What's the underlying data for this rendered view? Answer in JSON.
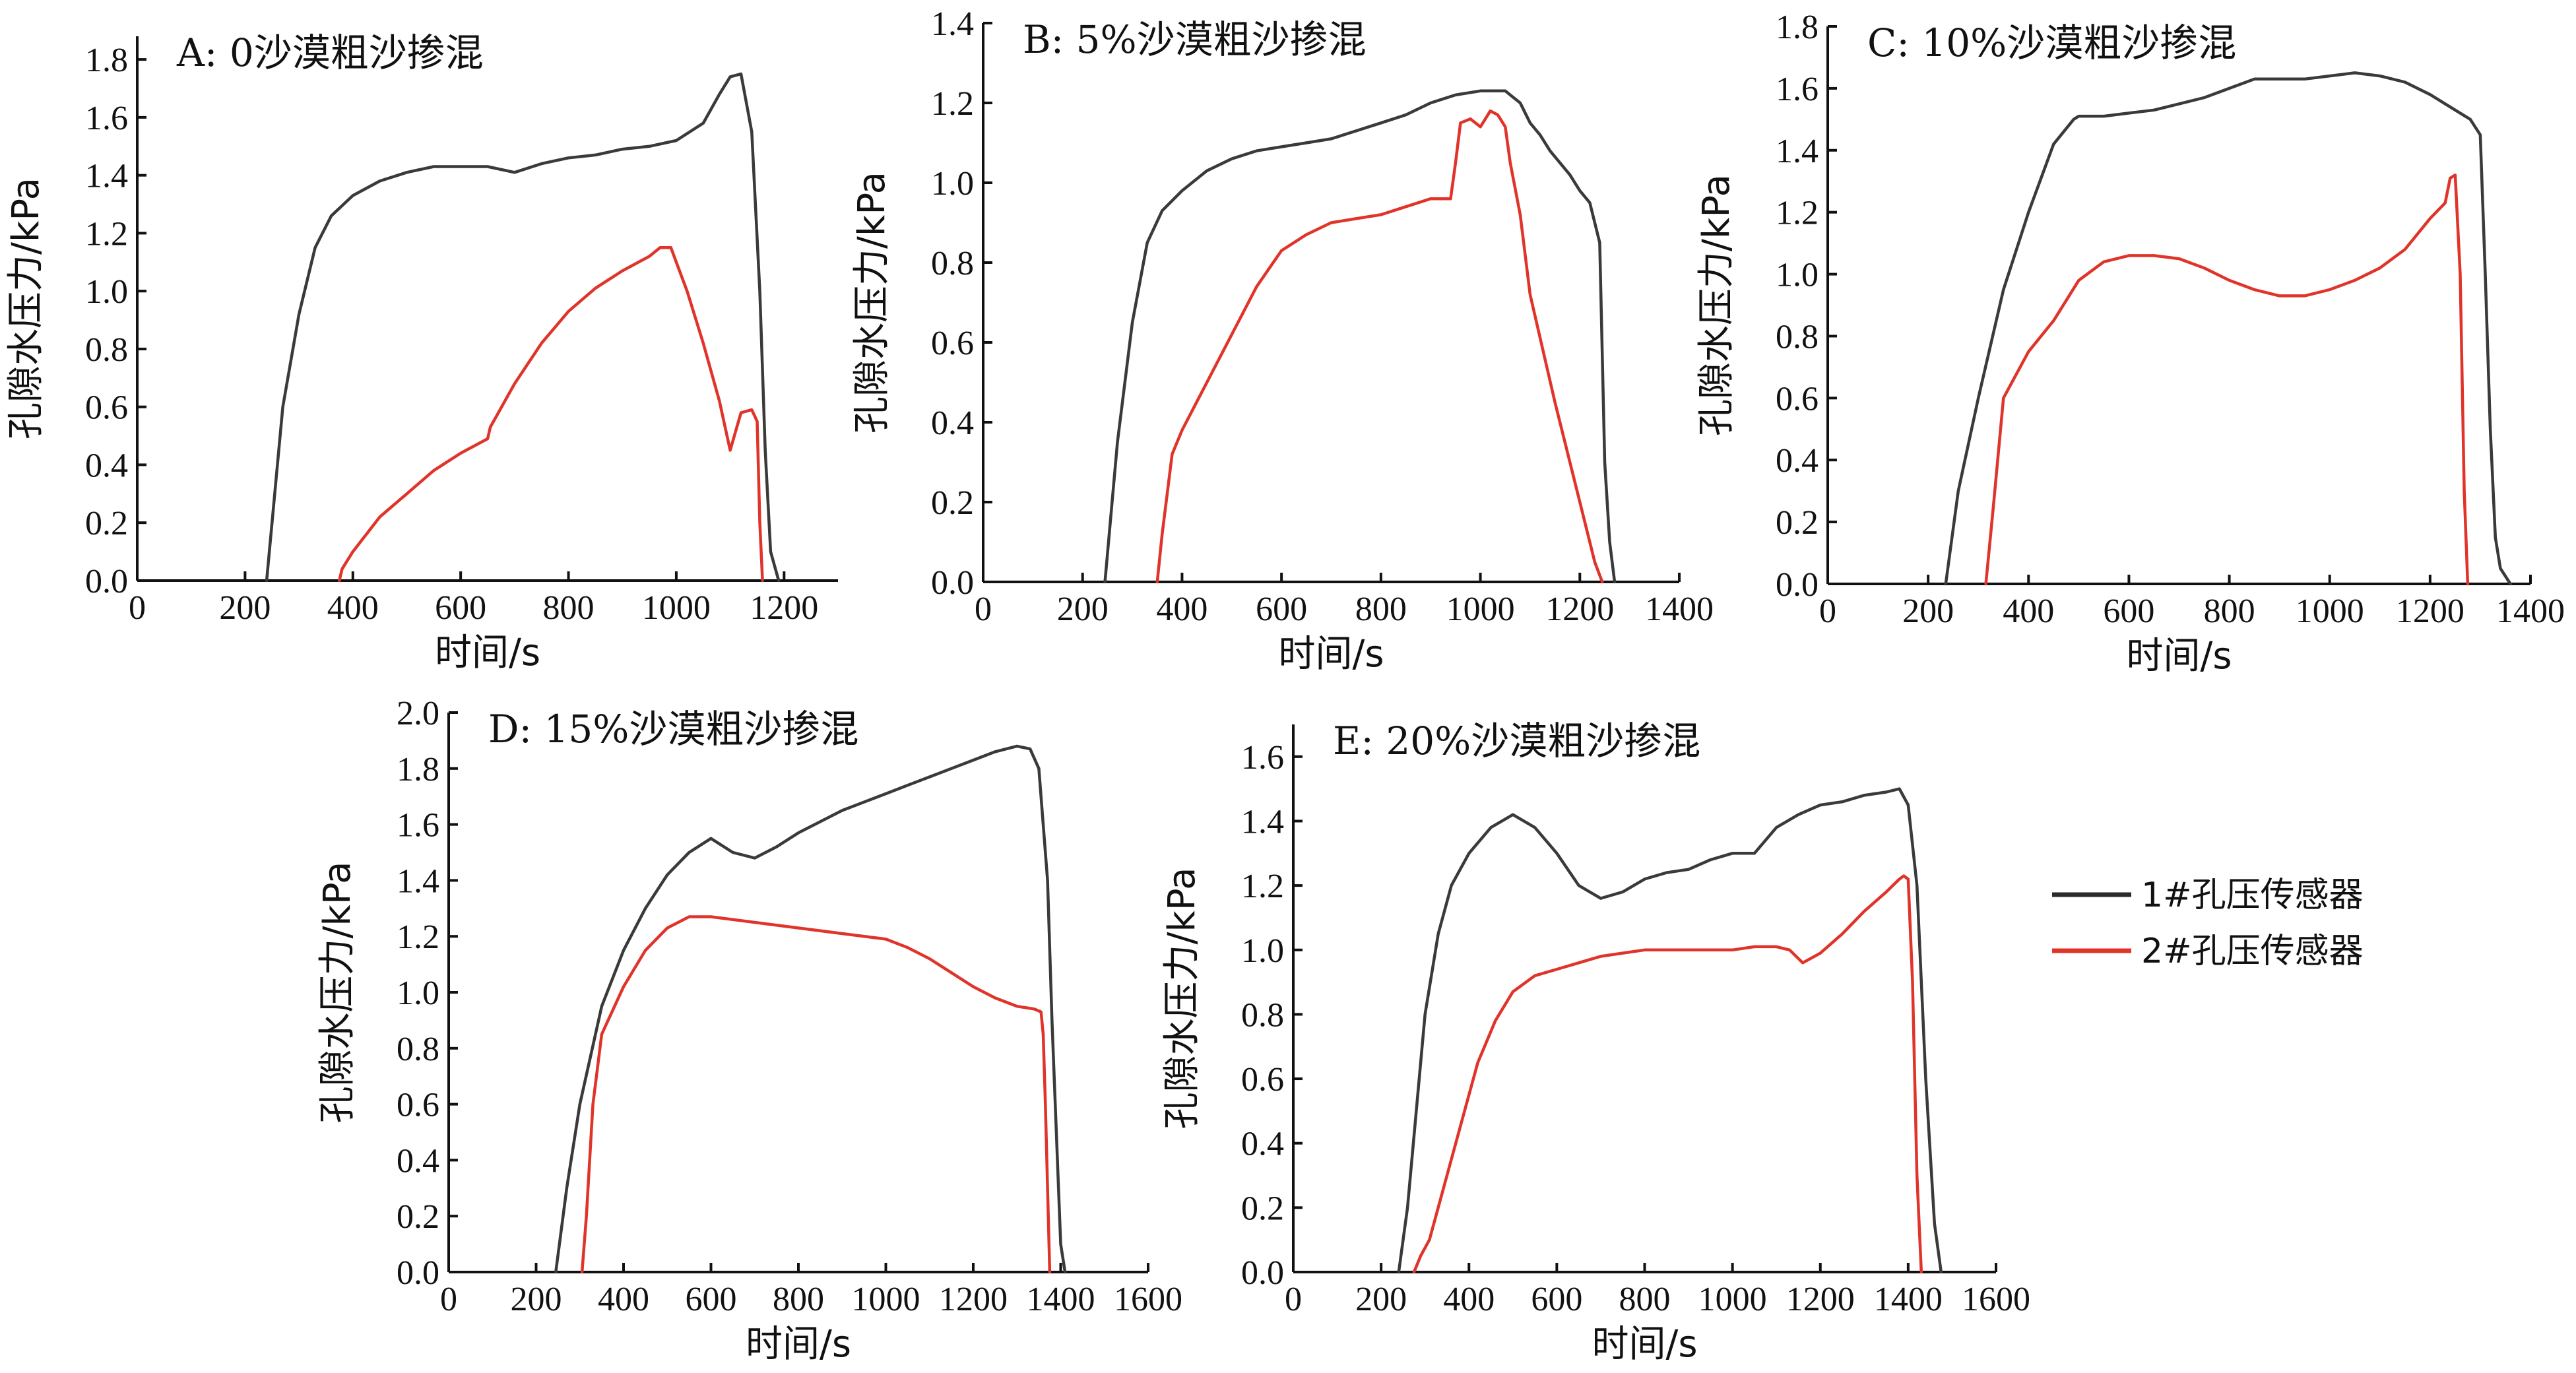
{
  "figure": {
    "legend": [
      {
        "label": "1#孔压传感器",
        "color": "#2b2b2b"
      },
      {
        "label": "2#孔压传感器",
        "color": "#e0342a"
      }
    ]
  },
  "chart_data": [
    {
      "type": "line",
      "title": "A: 0沙漠粗沙掺混",
      "xlabel": "时间/s",
      "ylabel": "孔隙水压力/kPa",
      "xlim": [
        0,
        1300
      ],
      "ylim": [
        0,
        1.88
      ],
      "xticks": [
        0,
        200,
        400,
        600,
        800,
        1000,
        1200
      ],
      "yticks": [
        0.0,
        0.2,
        0.4,
        0.6,
        0.8,
        1.0,
        1.2,
        1.4,
        1.6,
        1.8
      ],
      "series": [
        {
          "name": "1#孔压传感器",
          "color": "#3a3a3a",
          "x": [
            240,
            270,
            300,
            330,
            360,
            400,
            450,
            500,
            550,
            600,
            650,
            700,
            750,
            800,
            850,
            900,
            950,
            1000,
            1050,
            1080,
            1100,
            1120,
            1140,
            1155,
            1165,
            1175,
            1190
          ],
          "y": [
            0,
            0.6,
            0.92,
            1.15,
            1.26,
            1.33,
            1.38,
            1.41,
            1.43,
            1.43,
            1.43,
            1.41,
            1.44,
            1.46,
            1.47,
            1.49,
            1.5,
            1.52,
            1.58,
            1.68,
            1.74,
            1.75,
            1.55,
            1.0,
            0.45,
            0.1,
            0
          ]
        },
        {
          "name": "2#孔压传感器",
          "color": "#e0342a",
          "x": [
            375,
            380,
            400,
            450,
            500,
            550,
            600,
            650,
            655,
            700,
            750,
            800,
            850,
            900,
            950,
            970,
            990,
            1000,
            1020,
            1050,
            1080,
            1100,
            1120,
            1140,
            1150,
            1155,
            1160
          ],
          "y": [
            0,
            0.04,
            0.1,
            0.22,
            0.3,
            0.38,
            0.44,
            0.49,
            0.53,
            0.68,
            0.82,
            0.93,
            1.01,
            1.07,
            1.12,
            1.15,
            1.15,
            1.1,
            1.0,
            0.82,
            0.62,
            0.45,
            0.58,
            0.59,
            0.55,
            0.2,
            0
          ]
        }
      ]
    },
    {
      "type": "line",
      "title": "B: 5%沙漠粗沙掺混",
      "xlabel": "时间/s",
      "ylabel": "孔隙水压力/kPa",
      "xlim": [
        0,
        1400
      ],
      "ylim": [
        0,
        1.4
      ],
      "xticks": [
        0,
        200,
        400,
        600,
        800,
        1000,
        1200,
        1400
      ],
      "yticks": [
        0.0,
        0.2,
        0.4,
        0.6,
        0.8,
        1.0,
        1.2,
        1.4
      ],
      "series": [
        {
          "name": "1#孔压传感器",
          "color": "#3a3a3a",
          "x": [
            245,
            270,
            300,
            330,
            360,
            400,
            450,
            500,
            550,
            600,
            650,
            700,
            750,
            800,
            850,
            900,
            950,
            1000,
            1050,
            1080,
            1100,
            1120,
            1140,
            1160,
            1180,
            1200,
            1220,
            1240,
            1250,
            1260,
            1270
          ],
          "y": [
            0,
            0.35,
            0.65,
            0.85,
            0.93,
            0.98,
            1.03,
            1.06,
            1.08,
            1.09,
            1.1,
            1.11,
            1.13,
            1.15,
            1.17,
            1.2,
            1.22,
            1.23,
            1.23,
            1.2,
            1.15,
            1.12,
            1.08,
            1.05,
            1.02,
            0.98,
            0.95,
            0.85,
            0.3,
            0.1,
            0
          ]
        },
        {
          "name": "2#孔压传感器",
          "color": "#e0342a",
          "x": [
            350,
            360,
            380,
            400,
            450,
            500,
            550,
            600,
            650,
            700,
            750,
            800,
            850,
            900,
            940,
            950,
            960,
            980,
            1000,
            1020,
            1035,
            1050,
            1060,
            1080,
            1100,
            1150,
            1200,
            1230,
            1245
          ],
          "y": [
            0,
            0.12,
            0.32,
            0.38,
            0.5,
            0.62,
            0.74,
            0.83,
            0.87,
            0.9,
            0.91,
            0.92,
            0.94,
            0.96,
            0.96,
            1.05,
            1.15,
            1.16,
            1.14,
            1.18,
            1.17,
            1.14,
            1.05,
            0.92,
            0.72,
            0.45,
            0.2,
            0.05,
            0
          ]
        }
      ]
    },
    {
      "type": "line",
      "title": "C: 10%沙漠粗沙掺混",
      "xlabel": "时间/s",
      "ylabel": "孔隙水压力/kPa",
      "xlim": [
        0,
        1400
      ],
      "ylim": [
        0,
        1.8
      ],
      "xticks": [
        0,
        200,
        400,
        600,
        800,
        1000,
        1200,
        1400
      ],
      "yticks": [
        0.0,
        0.2,
        0.4,
        0.6,
        0.8,
        1.0,
        1.2,
        1.4,
        1.6,
        1.8
      ],
      "series": [
        {
          "name": "1#孔压传感器",
          "color": "#3a3a3a",
          "x": [
            235,
            260,
            300,
            350,
            400,
            450,
            490,
            500,
            550,
            600,
            650,
            700,
            750,
            800,
            850,
            900,
            950,
            1000,
            1050,
            1100,
            1150,
            1200,
            1250,
            1280,
            1300,
            1310,
            1320,
            1330,
            1340,
            1360
          ],
          "y": [
            0,
            0.3,
            0.6,
            0.95,
            1.2,
            1.42,
            1.5,
            1.51,
            1.51,
            1.52,
            1.53,
            1.55,
            1.57,
            1.6,
            1.63,
            1.63,
            1.63,
            1.64,
            1.65,
            1.64,
            1.62,
            1.58,
            1.53,
            1.5,
            1.45,
            1.0,
            0.5,
            0.15,
            0.05,
            0
          ]
        },
        {
          "name": "2#孔压传感器",
          "color": "#e0342a",
          "x": [
            315,
            330,
            350,
            400,
            450,
            500,
            550,
            600,
            650,
            700,
            750,
            800,
            850,
            900,
            950,
            1000,
            1050,
            1100,
            1150,
            1200,
            1230,
            1240,
            1250,
            1260,
            1268,
            1275
          ],
          "y": [
            0,
            0.25,
            0.6,
            0.75,
            0.85,
            0.98,
            1.04,
            1.06,
            1.06,
            1.05,
            1.02,
            0.98,
            0.95,
            0.93,
            0.93,
            0.95,
            0.98,
            1.02,
            1.08,
            1.18,
            1.23,
            1.31,
            1.32,
            1.0,
            0.3,
            0
          ]
        }
      ]
    },
    {
      "type": "line",
      "title": "D: 15%沙漠粗沙掺混",
      "xlabel": "时间/s",
      "ylabel": "孔隙水压力/kPa",
      "xlim": [
        0,
        1600
      ],
      "ylim": [
        0,
        2.0
      ],
      "xticks": [
        0,
        200,
        400,
        600,
        800,
        1000,
        1200,
        1400,
        1600
      ],
      "yticks": [
        0.0,
        0.2,
        0.4,
        0.6,
        0.8,
        1.0,
        1.2,
        1.4,
        1.6,
        1.8,
        2.0
      ],
      "series": [
        {
          "name": "1#孔压传感器",
          "color": "#3a3a3a",
          "x": [
            245,
            270,
            300,
            350,
            400,
            450,
            500,
            550,
            600,
            650,
            700,
            750,
            800,
            850,
            900,
            950,
            1000,
            1050,
            1100,
            1150,
            1200,
            1250,
            1300,
            1330,
            1350,
            1370,
            1380,
            1390,
            1400,
            1410
          ],
          "y": [
            0,
            0.3,
            0.6,
            0.95,
            1.15,
            1.3,
            1.42,
            1.5,
            1.55,
            1.5,
            1.48,
            1.52,
            1.57,
            1.61,
            1.65,
            1.68,
            1.71,
            1.74,
            1.77,
            1.8,
            1.83,
            1.86,
            1.88,
            1.87,
            1.8,
            1.4,
            0.9,
            0.5,
            0.1,
            0
          ]
        },
        {
          "name": "2#孔压传感器",
          "color": "#e0342a",
          "x": [
            305,
            315,
            330,
            350,
            400,
            450,
            500,
            550,
            600,
            700,
            800,
            900,
            1000,
            1050,
            1100,
            1150,
            1200,
            1250,
            1300,
            1340,
            1355,
            1360,
            1365,
            1375
          ],
          "y": [
            0,
            0.2,
            0.6,
            0.85,
            1.02,
            1.15,
            1.23,
            1.27,
            1.27,
            1.25,
            1.23,
            1.21,
            1.19,
            1.16,
            1.12,
            1.07,
            1.02,
            0.98,
            0.95,
            0.94,
            0.93,
            0.85,
            0.6,
            0
          ]
        }
      ]
    },
    {
      "type": "line",
      "title": "E: 20%沙漠粗沙掺混",
      "xlabel": "时间/s",
      "ylabel": "孔隙水压力/kPa",
      "xlim": [
        0,
        1600
      ],
      "ylim": [
        0,
        1.7
      ],
      "xticks": [
        0,
        200,
        400,
        600,
        800,
        1000,
        1200,
        1400,
        1600
      ],
      "yticks": [
        0.0,
        0.2,
        0.4,
        0.6,
        0.8,
        1.0,
        1.2,
        1.4,
        1.6
      ],
      "series": [
        {
          "name": "1#孔压传感器",
          "color": "#3a3a3a",
          "x": [
            240,
            260,
            280,
            300,
            330,
            360,
            400,
            450,
            500,
            550,
            600,
            650,
            700,
            750,
            800,
            850,
            900,
            950,
            1000,
            1050,
            1100,
            1150,
            1200,
            1250,
            1300,
            1350,
            1380,
            1400,
            1420,
            1440,
            1460,
            1475
          ],
          "y": [
            0,
            0.2,
            0.5,
            0.8,
            1.05,
            1.2,
            1.3,
            1.38,
            1.42,
            1.38,
            1.3,
            1.2,
            1.16,
            1.18,
            1.22,
            1.24,
            1.25,
            1.28,
            1.3,
            1.3,
            1.38,
            1.42,
            1.45,
            1.46,
            1.48,
            1.49,
            1.5,
            1.45,
            1.2,
            0.6,
            0.15,
            0
          ]
        },
        {
          "name": "2#孔压传感器",
          "color": "#e0342a",
          "x": [
            275,
            290,
            310,
            340,
            380,
            420,
            460,
            500,
            550,
            600,
            650,
            700,
            750,
            800,
            850,
            900,
            950,
            1000,
            1050,
            1100,
            1130,
            1160,
            1200,
            1250,
            1300,
            1350,
            1380,
            1390,
            1400,
            1410,
            1420,
            1430
          ],
          "y": [
            0,
            0.05,
            0.1,
            0.25,
            0.45,
            0.65,
            0.78,
            0.87,
            0.92,
            0.94,
            0.96,
            0.98,
            0.99,
            1.0,
            1.0,
            1.0,
            1.0,
            1.0,
            1.01,
            1.01,
            1.0,
            0.96,
            0.99,
            1.05,
            1.12,
            1.18,
            1.22,
            1.23,
            1.22,
            0.9,
            0.3,
            0
          ]
        }
      ]
    }
  ]
}
